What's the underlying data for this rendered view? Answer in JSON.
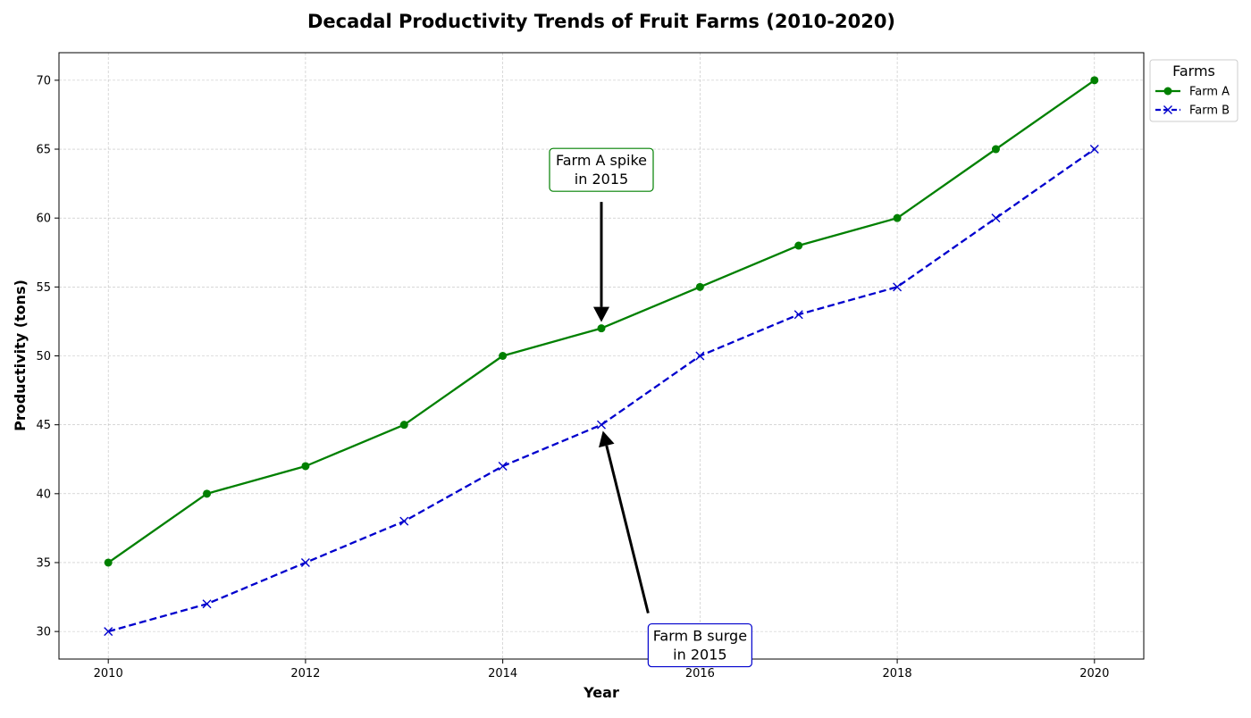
{
  "chart_data": {
    "type": "line",
    "title": "Decadal Productivity Trends of Fruit Farms (2010-2020)",
    "xlabel": "Year",
    "ylabel": "Productivity (tons)",
    "x": [
      2010,
      2011,
      2012,
      2013,
      2014,
      2015,
      2016,
      2017,
      2018,
      2019,
      2020
    ],
    "xlim": [
      2009.5,
      2020.5
    ],
    "ylim": [
      28,
      72
    ],
    "x_ticks": [
      2010,
      2012,
      2014,
      2016,
      2018,
      2020
    ],
    "y_ticks": [
      30,
      35,
      40,
      45,
      50,
      55,
      60,
      65,
      70
    ],
    "grid": true,
    "legend": {
      "title": "Farms",
      "placement": "upper-right-outside"
    },
    "series": [
      {
        "name": "Farm A",
        "values": [
          35,
          40,
          42,
          45,
          50,
          52,
          55,
          58,
          60,
          65,
          70
        ],
        "color": "#008000",
        "line_style": "solid",
        "marker": "circle"
      },
      {
        "name": "Farm B",
        "values": [
          30,
          32,
          35,
          38,
          42,
          45,
          50,
          53,
          55,
          60,
          65
        ],
        "color": "#0000cd",
        "line_style": "dashed",
        "marker": "x"
      }
    ],
    "annotations": [
      {
        "text_lines": [
          "Farm A spike",
          "in 2015"
        ],
        "target": [
          2015,
          52
        ],
        "text_pos": [
          2015,
          63.5
        ],
        "box_color": "#008000"
      },
      {
        "text_lines": [
          "Farm B surge",
          "in 2015"
        ],
        "target": [
          2015,
          45
        ],
        "text_pos": [
          2016,
          29
        ],
        "box_color": "#0000cd"
      }
    ]
  }
}
